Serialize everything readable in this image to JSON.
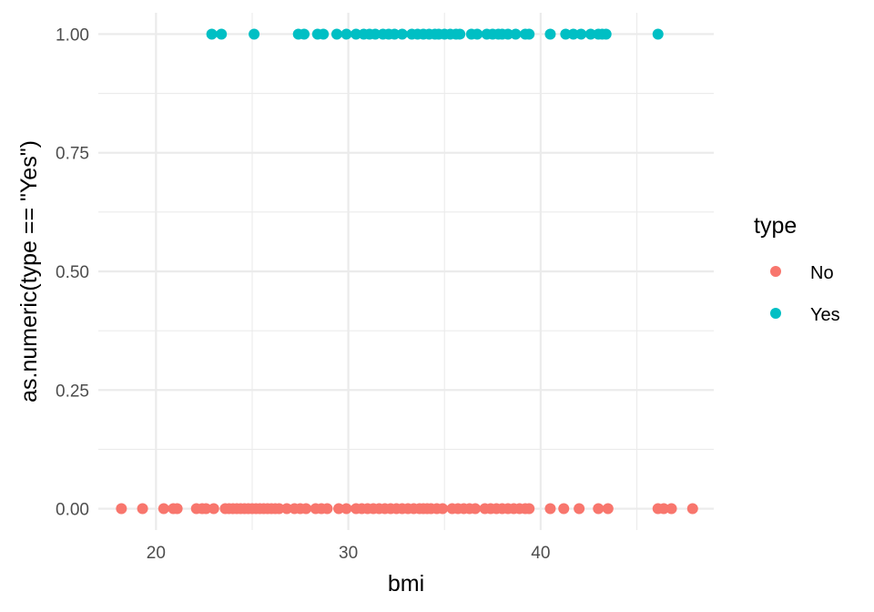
{
  "chart_data": {
    "type": "scatter",
    "xlabel": "bmi",
    "ylabel": "as.numeric(type == \"Yes\")",
    "xlim": [
      17,
      49
    ],
    "ylim": [
      -0.045,
      1.045
    ],
    "x_ticks": [
      20,
      30,
      40
    ],
    "x_tick_labels": [
      "20",
      "30",
      "40"
    ],
    "y_ticks": [
      0,
      0.25,
      0.5,
      0.75,
      1
    ],
    "y_tick_labels": [
      "0.00",
      "0.25",
      "0.50",
      "0.75",
      "1.00"
    ],
    "grid": true,
    "legend": {
      "title": "type",
      "position": "right"
    },
    "series": [
      {
        "name": "No",
        "color": "#F8766D",
        "y": 0,
        "x": [
          18.2,
          19.3,
          20.4,
          20.9,
          21.1,
          22.1,
          22.4,
          22.6,
          23.0,
          23.6,
          23.8,
          24.0,
          24.2,
          24.4,
          24.6,
          24.8,
          25.0,
          25.2,
          25.4,
          25.6,
          25.8,
          26.0,
          26.2,
          26.4,
          26.8,
          27.2,
          27.5,
          27.8,
          28.3,
          28.6,
          28.9,
          29.5,
          29.9,
          30.4,
          30.7,
          31.0,
          31.3,
          31.6,
          31.9,
          32.2,
          32.5,
          32.8,
          33.1,
          33.4,
          33.7,
          33.9,
          34.1,
          34.3,
          34.6,
          34.9,
          35.4,
          35.7,
          36.0,
          36.3,
          36.6,
          37.1,
          37.4,
          37.7,
          38.0,
          38.3,
          38.6,
          38.9,
          39.2,
          39.4,
          40.5,
          41.2,
          42.0,
          43.0,
          43.5,
          46.1,
          46.4,
          46.8,
          47.9
        ]
      },
      {
        "name": "Yes",
        "color": "#00BFC4",
        "y": 1,
        "x": [
          22.9,
          23.4,
          25.1,
          27.4,
          27.7,
          28.4,
          28.7,
          29.4,
          29.9,
          30.4,
          30.8,
          31.1,
          31.4,
          31.8,
          32.1,
          32.4,
          32.8,
          33.3,
          33.6,
          33.9,
          34.2,
          34.5,
          34.7,
          35.0,
          35.3,
          35.6,
          35.8,
          36.4,
          36.7,
          37.2,
          37.5,
          37.8,
          38.0,
          38.3,
          38.7,
          39.2,
          39.4,
          40.5,
          41.3,
          41.7,
          42.1,
          42.6,
          43.0,
          43.2,
          43.4,
          46.1
        ]
      }
    ]
  }
}
